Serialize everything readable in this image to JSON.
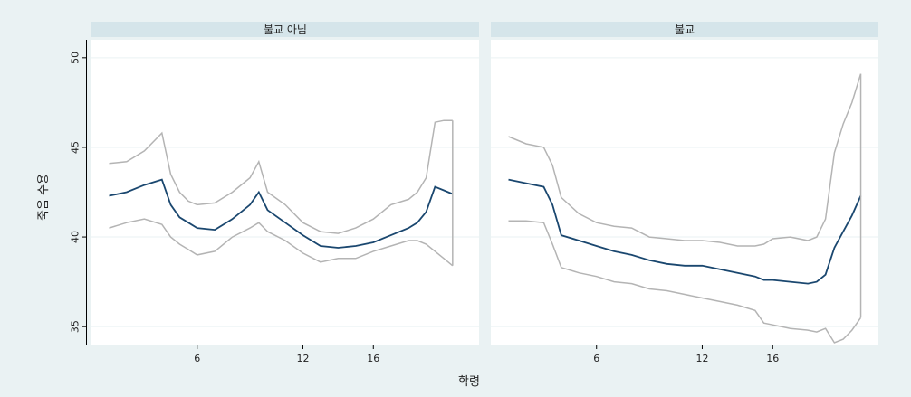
{
  "chart_data": {
    "type": "line",
    "ylabel": "죽음 수용",
    "xlabel": "학령",
    "ylim": [
      34,
      51
    ],
    "yticks": [
      35,
      40,
      45,
      50
    ],
    "xticks": [
      6,
      12,
      16
    ],
    "grid": true,
    "colors": {
      "fit": "#1a476f",
      "ci": "#b4b4b4",
      "header": "#d5e5ea",
      "background": "#eaf2f3",
      "plot": "#ffffff"
    },
    "panels": [
      {
        "title": "불교 아님",
        "xlim": [
          0,
          22
        ],
        "x": [
          1,
          2,
          3,
          4,
          4.5,
          5,
          5.5,
          6,
          7,
          8,
          9,
          9.5,
          10,
          11,
          12,
          13,
          14,
          15,
          16,
          17,
          18,
          18.5,
          19,
          19.5,
          20,
          20.5
        ],
        "series": [
          {
            "role": "fit",
            "values": [
              42.3,
              42.5,
              42.9,
              43.2,
              41.8,
              41.1,
              40.8,
              40.5,
              40.4,
              41.0,
              41.8,
              42.5,
              41.5,
              40.8,
              40.1,
              39.5,
              39.4,
              39.5,
              39.7,
              40.1,
              40.5,
              40.8,
              41.4,
              42.8,
              42.6,
              42.4
            ]
          },
          {
            "role": "upper",
            "values": [
              44.1,
              44.2,
              44.8,
              45.8,
              43.5,
              42.5,
              42.0,
              41.8,
              41.9,
              42.5,
              43.3,
              44.2,
              42.5,
              41.8,
              40.8,
              40.3,
              40.2,
              40.5,
              41.0,
              41.8,
              42.1,
              42.5,
              43.3,
              46.4,
              46.5,
              46.5
            ]
          },
          {
            "role": "lower",
            "values": [
              40.5,
              40.8,
              41.0,
              40.7,
              40.0,
              39.6,
              39.3,
              39.0,
              39.2,
              40.0,
              40.5,
              40.8,
              40.3,
              39.8,
              39.1,
              38.6,
              38.8,
              38.8,
              39.2,
              39.5,
              39.8,
              39.8,
              39.6,
              39.2,
              38.8,
              38.4
            ]
          }
        ]
      },
      {
        "title": "불교",
        "xlim": [
          0,
          22
        ],
        "x": [
          1,
          2,
          3,
          3.5,
          4,
          5,
          6,
          7,
          8,
          9,
          10,
          11,
          12,
          13,
          14,
          15,
          15.5,
          16,
          17,
          18,
          18.5,
          19,
          19.5,
          20,
          20.5,
          21
        ],
        "series": [
          {
            "role": "fit",
            "values": [
              43.2,
              43.0,
              42.8,
              41.8,
              40.1,
              39.8,
              39.5,
              39.2,
              39.0,
              38.7,
              38.5,
              38.4,
              38.4,
              38.2,
              38.0,
              37.8,
              37.6,
              37.6,
              37.5,
              37.4,
              37.5,
              37.9,
              39.4,
              40.3,
              41.2,
              42.3
            ]
          },
          {
            "role": "upper",
            "values": [
              45.6,
              45.2,
              45.0,
              44.0,
              42.2,
              41.3,
              40.8,
              40.6,
              40.5,
              40.0,
              39.9,
              39.8,
              39.8,
              39.7,
              39.5,
              39.5,
              39.6,
              39.9,
              40.0,
              39.8,
              40.0,
              41.0,
              44.7,
              46.3,
              47.5,
              49.1
            ]
          },
          {
            "role": "lower",
            "values": [
              40.9,
              40.9,
              40.8,
              39.6,
              38.3,
              38.0,
              37.8,
              37.5,
              37.4,
              37.1,
              37.0,
              36.8,
              36.6,
              36.4,
              36.2,
              35.9,
              35.2,
              35.1,
              34.9,
              34.8,
              34.7,
              34.9,
              34.1,
              34.3,
              34.8,
              35.5
            ]
          }
        ]
      }
    ]
  }
}
